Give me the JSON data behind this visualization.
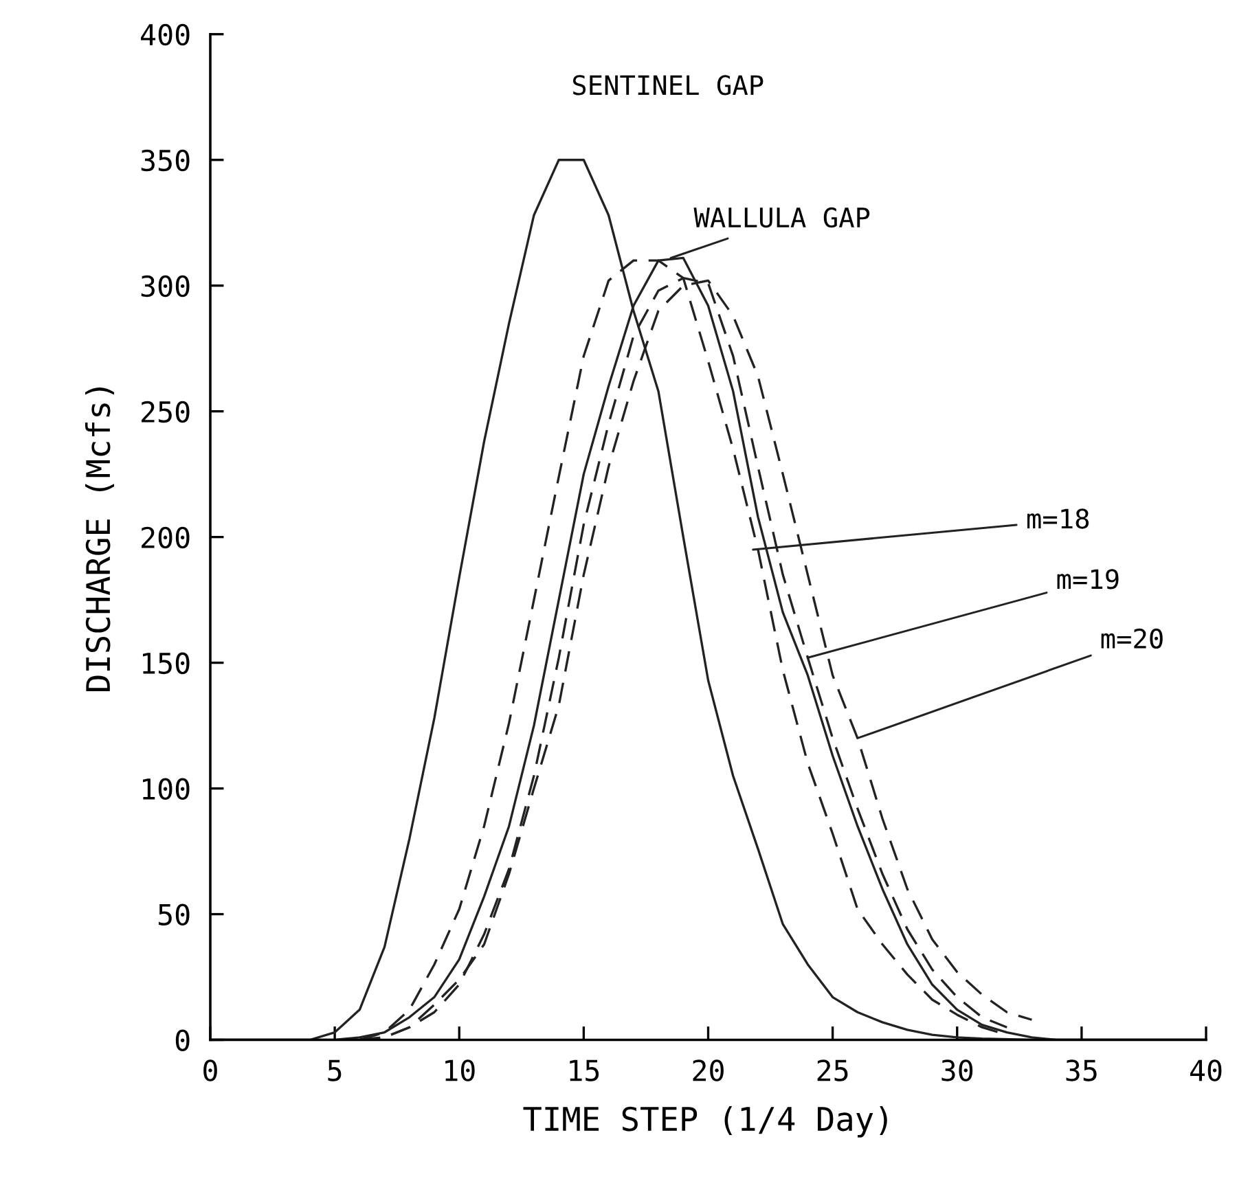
{
  "chart_data": {
    "type": "line",
    "xlabel": "TIME STEP (1/4 Day)",
    "ylabel": "DISCHARGE (Mcfs)",
    "xlim": [
      0,
      40
    ],
    "ylim": [
      0,
      400
    ],
    "xticks": [
      0,
      5,
      10,
      15,
      20,
      25,
      30,
      35,
      40
    ],
    "yticks": [
      0,
      50,
      100,
      150,
      200,
      250,
      300,
      350,
      400
    ],
    "grid": false,
    "legend": false,
    "marker": "none",
    "series": [
      {
        "color": "#222222",
        "line_style": "solid",
        "x": [
          0,
          3,
          4,
          5,
          6,
          7,
          8,
          9,
          10,
          11,
          12,
          13,
          14,
          15,
          16,
          17,
          18,
          19,
          20,
          21,
          22,
          23,
          24,
          25,
          26,
          27,
          28,
          29,
          30,
          31,
          33,
          40
        ],
        "values": [
          0,
          0,
          0,
          3,
          12,
          37,
          80,
          128,
          184,
          238,
          285,
          328,
          350,
          350,
          328,
          290,
          258,
          200,
          143,
          105,
          76,
          46,
          30,
          17,
          11,
          7,
          4,
          2,
          1,
          0.5,
          0,
          0
        ]
      },
      {
        "color": "#222222",
        "line_style": "solid",
        "x": [
          0,
          5,
          6,
          7,
          8,
          9,
          10,
          11,
          12,
          13,
          14,
          15,
          16,
          17,
          18,
          19,
          20,
          21,
          22,
          23,
          24,
          25,
          26,
          27,
          28,
          29,
          30,
          31,
          32,
          33,
          34,
          40
        ],
        "values": [
          0,
          0,
          1,
          3,
          9,
          17,
          32,
          57,
          85,
          125,
          175,
          225,
          260,
          292,
          310,
          311,
          292,
          258,
          208,
          170,
          145,
          113,
          85,
          60,
          38,
          22,
          12,
          6,
          3,
          1,
          0,
          0
        ]
      },
      {
        "color": "#222222",
        "line_style": "dashed",
        "x": [
          6,
          7,
          8,
          9,
          10,
          11,
          12,
          13,
          14,
          15,
          16,
          17,
          18,
          19,
          20,
          21,
          22,
          23,
          24,
          25,
          26,
          27,
          28,
          29,
          30,
          31,
          32
        ],
        "values": [
          0,
          3,
          12,
          30,
          52,
          85,
          126,
          175,
          224,
          272,
          302,
          310,
          310,
          303,
          270,
          235,
          195,
          147,
          110,
          82,
          52,
          38,
          26,
          16,
          10,
          5,
          2
        ]
      },
      {
        "color": "#222222",
        "line_style": "dashed",
        "x": [
          6,
          7,
          8,
          9,
          10,
          11,
          12,
          13,
          14,
          15,
          16,
          17,
          18,
          19,
          20,
          21,
          22,
          23,
          24,
          25,
          26,
          27,
          28,
          29,
          30,
          31,
          32
        ],
        "values": [
          0,
          1,
          5,
          11,
          22,
          42,
          68,
          105,
          152,
          205,
          245,
          280,
          298,
          303,
          301,
          272,
          228,
          185,
          152,
          120,
          92,
          66,
          44,
          28,
          17,
          9,
          5
        ]
      },
      {
        "color": "#222222",
        "line_style": "dashed",
        "x": [
          6,
          7,
          8,
          9,
          10,
          11,
          12,
          13,
          14,
          15,
          16,
          17,
          18,
          19,
          20,
          21,
          22,
          23,
          24,
          25,
          26,
          27,
          28,
          29,
          30,
          31,
          32,
          33
        ],
        "values": [
          0,
          1,
          5,
          14,
          24,
          38,
          66,
          100,
          133,
          185,
          228,
          262,
          290,
          300,
          302,
          288,
          264,
          225,
          185,
          145,
          120,
          88,
          60,
          40,
          27,
          18,
          11,
          8
        ]
      }
    ],
    "annotations": [
      {
        "text": "SENTINEL GAP",
        "x": 14.5,
        "y": 350
      },
      {
        "text": "WALLULA GAP",
        "x": 18.5,
        "y": 311
      },
      {
        "text": "m=18",
        "x": 21.8,
        "y": 195
      },
      {
        "text": "m=19",
        "x": 24.0,
        "y": 152
      },
      {
        "text": "m=20",
        "x": 26.0,
        "y": 120
      }
    ]
  }
}
